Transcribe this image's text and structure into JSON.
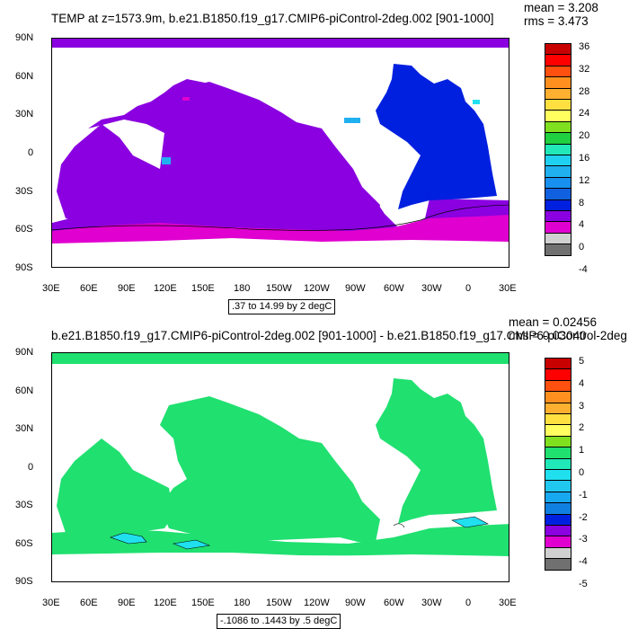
{
  "panel1": {
    "title": "TEMP at z=1573.9m, b.e21.B1850.f19_g17.CMIP6-piControl-2deg.002 [901-1000]",
    "mean": "mean = 3.208",
    "rms": "rms = 3.473",
    "range": ".37 to 14.99 by 2 degC",
    "ocean_color": "#8a00e0",
    "colorbar": {
      "labels": [
        "36",
        "32",
        "28",
        "24",
        "20",
        "16",
        "12",
        "8",
        "4",
        "0",
        "-4"
      ],
      "colors": [
        "#c80000",
        "#ff0000",
        "#ff5010",
        "#ff9020",
        "#ffb030",
        "#ffe040",
        "#ffff60",
        "#80e020",
        "#20d040",
        "#20e8b8",
        "#20d0f0",
        "#20b0f0",
        "#1890f0",
        "#1060e0",
        "#0020e0",
        "#8a00e0",
        "#e000d0",
        "#d0d0d0",
        "#707070"
      ]
    }
  },
  "panel2": {
    "title": "b.e21.B1850.f19_g17.CMIP6-piControl-2deg.002 [901-1000] - b.e21.B1850.f19_g17.CMIP6-piControl-2deg",
    "mean": "mean = 0.02456",
    "rms": "rms = 0.03040",
    "range": "-.1086 to .1443 by .5 degC",
    "ocean_color": "#20e070",
    "colorbar": {
      "labels": [
        "5",
        "4",
        "3",
        "2",
        "1",
        "0",
        "-1",
        "-2",
        "-3",
        "-4",
        "-5"
      ],
      "colors": [
        "#c80000",
        "#ff0000",
        "#ff5010",
        "#ff9020",
        "#ffb030",
        "#ffe040",
        "#ffff60",
        "#80e020",
        "#20e070",
        "#20e8b8",
        "#20e0f0",
        "#20c8f0",
        "#18a8f0",
        "#1080e0",
        "#0020e0",
        "#8a00e0",
        "#e000d0",
        "#d0d0d0",
        "#707070"
      ]
    }
  },
  "axes": {
    "lat_ticks": [
      "90N",
      "60N",
      "30N",
      "0",
      "30S",
      "60S",
      "90S"
    ],
    "lon_ticks": [
      "30E",
      "60E",
      "90E",
      "120E",
      "150E",
      "180",
      "150W",
      "120W",
      "90W",
      "60W",
      "30W",
      "0",
      "30E"
    ]
  },
  "features": {
    "atlantic_color": "#0020e0",
    "southern_color": "#e000d0",
    "cyan_color": "#20e0f0"
  }
}
